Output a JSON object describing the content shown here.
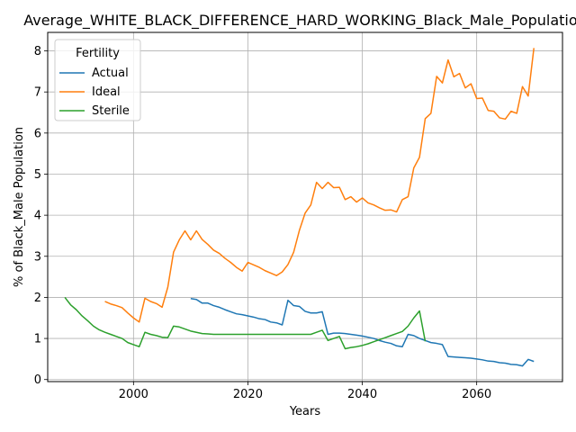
{
  "chart_data": {
    "type": "line",
    "title": "Average_WHITE_BLACK_DIFFERENCE_HARD_WORKING_Black_Male_Population",
    "xlabel": "Years",
    "ylabel": "% of Black_Male Population",
    "xlim": [
      1985,
      2075
    ],
    "ylim": [
      -0.05,
      8.45
    ],
    "xticks": [
      2000,
      2020,
      2040,
      2060
    ],
    "yticks": [
      0,
      1,
      2,
      3,
      4,
      5,
      6,
      7,
      8
    ],
    "grid": true,
    "legend": {
      "title": "Fertility",
      "placement": "top-left"
    },
    "series": [
      {
        "name": "Actual",
        "color": "#1f77b4",
        "points": [
          [
            2010,
            1.97
          ],
          [
            2011,
            1.95
          ],
          [
            2012,
            1.86
          ],
          [
            2013,
            1.86
          ],
          [
            2014,
            1.8
          ],
          [
            2015,
            1.76
          ],
          [
            2016,
            1.7
          ],
          [
            2017,
            1.65
          ],
          [
            2018,
            1.6
          ],
          [
            2019,
            1.58
          ],
          [
            2020,
            1.55
          ],
          [
            2021,
            1.52
          ],
          [
            2022,
            1.48
          ],
          [
            2023,
            1.46
          ],
          [
            2024,
            1.4
          ],
          [
            2025,
            1.38
          ],
          [
            2026,
            1.33
          ],
          [
            2027,
            1.93
          ],
          [
            2028,
            1.8
          ],
          [
            2029,
            1.78
          ],
          [
            2030,
            1.66
          ],
          [
            2031,
            1.62
          ],
          [
            2032,
            1.62
          ],
          [
            2033,
            1.65
          ],
          [
            2034,
            1.1
          ],
          [
            2035,
            1.13
          ],
          [
            2036,
            1.13
          ],
          [
            2037,
            1.12
          ],
          [
            2038,
            1.1
          ],
          [
            2039,
            1.08
          ],
          [
            2040,
            1.06
          ],
          [
            2041,
            1.03
          ],
          [
            2042,
            1.0
          ],
          [
            2043,
            0.95
          ],
          [
            2044,
            0.91
          ],
          [
            2045,
            0.88
          ],
          [
            2046,
            0.82
          ],
          [
            2047,
            0.8
          ],
          [
            2048,
            1.1
          ],
          [
            2049,
            1.07
          ],
          [
            2050,
            1.0
          ],
          [
            2051,
            0.95
          ],
          [
            2052,
            0.9
          ],
          [
            2053,
            0.88
          ],
          [
            2054,
            0.85
          ],
          [
            2055,
            0.56
          ],
          [
            2056,
            0.55
          ],
          [
            2057,
            0.54
          ],
          [
            2058,
            0.53
          ],
          [
            2059,
            0.52
          ],
          [
            2060,
            0.5
          ],
          [
            2061,
            0.48
          ],
          [
            2062,
            0.45
          ],
          [
            2063,
            0.44
          ],
          [
            2064,
            0.41
          ],
          [
            2065,
            0.4
          ],
          [
            2066,
            0.37
          ],
          [
            2067,
            0.36
          ],
          [
            2068,
            0.33
          ],
          [
            2069,
            0.49
          ],
          [
            2070,
            0.44
          ]
        ]
      },
      {
        "name": "Ideal",
        "color": "#ff7f0e",
        "points": [
          [
            1995,
            1.9
          ],
          [
            1996,
            1.84
          ],
          [
            1997,
            1.8
          ],
          [
            1998,
            1.75
          ],
          [
            1999,
            1.62
          ],
          [
            2000,
            1.5
          ],
          [
            2001,
            1.4
          ],
          [
            2002,
            1.98
          ],
          [
            2003,
            1.9
          ],
          [
            2004,
            1.85
          ],
          [
            2005,
            1.76
          ],
          [
            2006,
            2.25
          ],
          [
            2007,
            3.1
          ],
          [
            2008,
            3.4
          ],
          [
            2009,
            3.62
          ],
          [
            2010,
            3.4
          ],
          [
            2011,
            3.62
          ],
          [
            2012,
            3.41
          ],
          [
            2013,
            3.29
          ],
          [
            2014,
            3.15
          ],
          [
            2015,
            3.07
          ],
          [
            2016,
            2.95
          ],
          [
            2017,
            2.85
          ],
          [
            2018,
            2.73
          ],
          [
            2019,
            2.64
          ],
          [
            2020,
            2.85
          ],
          [
            2021,
            2.79
          ],
          [
            2022,
            2.73
          ],
          [
            2023,
            2.65
          ],
          [
            2024,
            2.59
          ],
          [
            2025,
            2.53
          ],
          [
            2026,
            2.62
          ],
          [
            2027,
            2.8
          ],
          [
            2028,
            3.1
          ],
          [
            2029,
            3.63
          ],
          [
            2030,
            4.05
          ],
          [
            2031,
            4.25
          ],
          [
            2032,
            4.8
          ],
          [
            2033,
            4.65
          ],
          [
            2034,
            4.8
          ],
          [
            2035,
            4.67
          ],
          [
            2036,
            4.68
          ],
          [
            2037,
            4.38
          ],
          [
            2038,
            4.45
          ],
          [
            2039,
            4.32
          ],
          [
            2040,
            4.42
          ],
          [
            2041,
            4.3
          ],
          [
            2042,
            4.25
          ],
          [
            2043,
            4.18
          ],
          [
            2044,
            4.12
          ],
          [
            2045,
            4.13
          ],
          [
            2046,
            4.08
          ],
          [
            2047,
            4.38
          ],
          [
            2048,
            4.45
          ],
          [
            2049,
            5.15
          ],
          [
            2050,
            5.41
          ],
          [
            2051,
            6.35
          ],
          [
            2052,
            6.48
          ],
          [
            2053,
            7.38
          ],
          [
            2054,
            7.22
          ],
          [
            2055,
            7.78
          ],
          [
            2056,
            7.37
          ],
          [
            2057,
            7.45
          ],
          [
            2058,
            7.1
          ],
          [
            2059,
            7.2
          ],
          [
            2060,
            6.84
          ],
          [
            2061,
            6.85
          ],
          [
            2062,
            6.55
          ],
          [
            2063,
            6.53
          ],
          [
            2064,
            6.37
          ],
          [
            2065,
            6.34
          ],
          [
            2066,
            6.53
          ],
          [
            2067,
            6.48
          ],
          [
            2068,
            7.13
          ],
          [
            2069,
            6.9
          ],
          [
            2070,
            8.07
          ]
        ]
      },
      {
        "name": "Sterile",
        "color": "#2ca02c",
        "points": [
          [
            1988,
            2.0
          ],
          [
            1989,
            1.82
          ],
          [
            1990,
            1.7
          ],
          [
            1991,
            1.55
          ],
          [
            1992,
            1.43
          ],
          [
            1993,
            1.3
          ],
          [
            1994,
            1.21
          ],
          [
            1995,
            1.15
          ],
          [
            1996,
            1.1
          ],
          [
            1997,
            1.05
          ],
          [
            1998,
            1.0
          ],
          [
            1999,
            0.9
          ],
          [
            2000,
            0.85
          ],
          [
            2001,
            0.8
          ],
          [
            2002,
            1.15
          ],
          [
            2003,
            1.1
          ],
          [
            2004,
            1.07
          ],
          [
            2005,
            1.03
          ],
          [
            2006,
            1.02
          ],
          [
            2007,
            1.3
          ],
          [
            2008,
            1.28
          ],
          [
            2009,
            1.23
          ],
          [
            2010,
            1.18
          ],
          [
            2011,
            1.15
          ],
          [
            2012,
            1.12
          ],
          [
            2013,
            1.11
          ],
          [
            2014,
            1.1
          ],
          [
            2015,
            1.1
          ],
          [
            2016,
            1.1
          ],
          [
            2017,
            1.1
          ],
          [
            2018,
            1.1
          ],
          [
            2019,
            1.1
          ],
          [
            2020,
            1.1
          ],
          [
            2021,
            1.1
          ],
          [
            2022,
            1.1
          ],
          [
            2023,
            1.1
          ],
          [
            2024,
            1.1
          ],
          [
            2025,
            1.1
          ],
          [
            2026,
            1.1
          ],
          [
            2027,
            1.1
          ],
          [
            2028,
            1.1
          ],
          [
            2029,
            1.1
          ],
          [
            2030,
            1.1
          ],
          [
            2031,
            1.1
          ],
          [
            2032,
            1.15
          ],
          [
            2033,
            1.2
          ],
          [
            2034,
            0.95
          ],
          [
            2035,
            1.0
          ],
          [
            2036,
            1.05
          ],
          [
            2037,
            0.75
          ],
          [
            2038,
            0.78
          ],
          [
            2039,
            0.8
          ],
          [
            2040,
            0.83
          ],
          [
            2041,
            0.87
          ],
          [
            2042,
            0.92
          ],
          [
            2043,
            0.97
          ],
          [
            2044,
            1.02
          ],
          [
            2045,
            1.07
          ],
          [
            2046,
            1.12
          ],
          [
            2047,
            1.17
          ],
          [
            2048,
            1.3
          ],
          [
            2049,
            1.5
          ],
          [
            2050,
            1.67
          ],
          [
            2051,
            0.93
          ]
        ]
      }
    ]
  }
}
